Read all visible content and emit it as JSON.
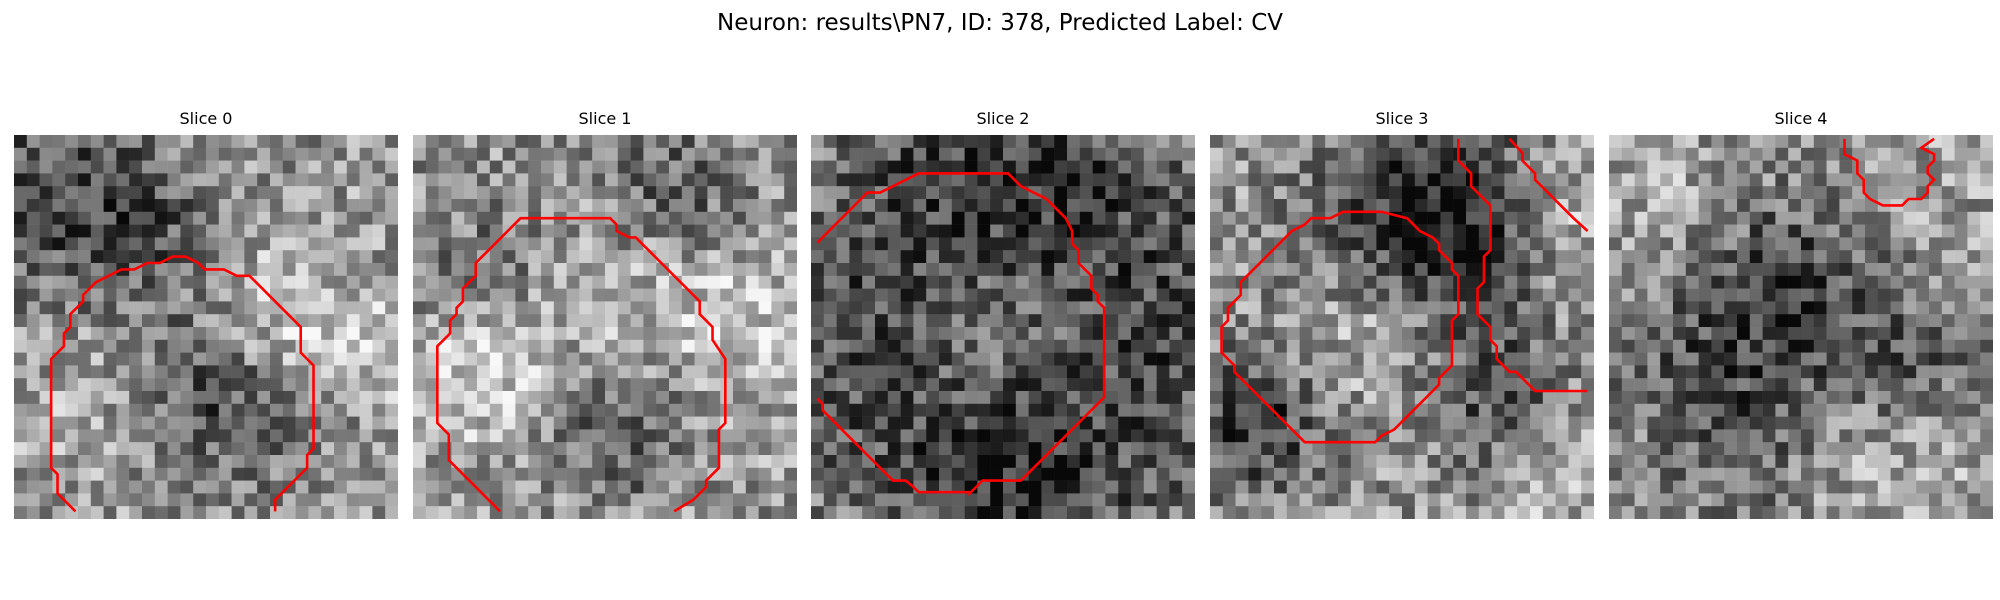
{
  "figure": {
    "title": "Neuron: results\\PN7, ID: 378, Predicted Label: CV"
  },
  "colors": {
    "contour": "#ff0000",
    "colormap": "grayscale"
  },
  "grid_size": 30,
  "panels": [
    {
      "title": "Slice 0",
      "seed": 11,
      "dark_blobs": [
        [
          3,
          4,
          6,
          -35
        ],
        [
          15,
          20,
          5,
          -45
        ],
        [
          10,
          8,
          4,
          -20
        ]
      ],
      "bright_blobs": [
        [
          20,
          14,
          4,
          30
        ],
        [
          28,
          16,
          3,
          25
        ],
        [
          8,
          20,
          6,
          15
        ]
      ]
    },
    {
      "title": "Slice 1",
      "seed": 23,
      "dark_blobs": [
        [
          16,
          22,
          4,
          -40
        ],
        [
          20,
          4,
          4,
          -30
        ],
        [
          6,
          10,
          5,
          -20
        ]
      ],
      "bright_blobs": [
        [
          15,
          14,
          7,
          20
        ],
        [
          4,
          18,
          4,
          25
        ],
        [
          25,
          14,
          4,
          20
        ]
      ]
    },
    {
      "title": "Slice 2",
      "seed": 37,
      "dark_blobs": [
        [
          4,
          15,
          9,
          -32
        ],
        [
          26,
          15,
          9,
          -32
        ],
        [
          15,
          3,
          8,
          -40
        ],
        [
          15,
          27,
          7,
          -40
        ]
      ],
      "bright_blobs": [
        [
          14,
          14,
          6,
          35
        ]
      ]
    },
    {
      "title": "Slice 3",
      "seed": 41,
      "dark_blobs": [
        [
          18,
          4,
          5,
          -50
        ],
        [
          3,
          22,
          4,
          -45
        ],
        [
          22,
          20,
          4,
          -35
        ],
        [
          21,
          10,
          3,
          -35
        ],
        [
          12,
          8,
          5,
          -20
        ]
      ],
      "bright_blobs": [
        [
          11,
          15,
          4,
          18
        ],
        [
          26,
          6,
          4,
          20
        ],
        [
          27,
          26,
          4,
          15
        ]
      ]
    },
    {
      "title": "Slice 4",
      "seed": 53,
      "dark_blobs": [
        [
          15,
          11,
          6,
          -45
        ],
        [
          6,
          16,
          5,
          -20
        ],
        [
          24,
          18,
          4,
          -20
        ],
        [
          10,
          24,
          5,
          -18
        ]
      ],
      "bright_blobs": [
        [
          20,
          6,
          5,
          18
        ],
        [
          5,
          6,
          4,
          15
        ],
        [
          22,
          26,
          5,
          15
        ]
      ]
    }
  ]
}
